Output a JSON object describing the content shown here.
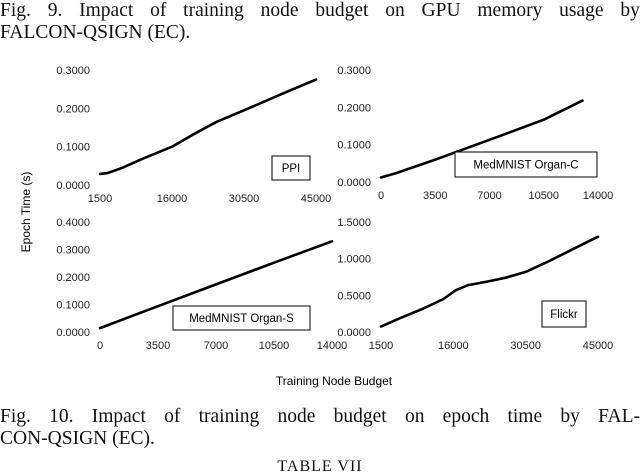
{
  "caption_top": {
    "line1": [
      "Fig.",
      "9.",
      "Impact",
      "of",
      "training",
      "node",
      "budget",
      "on",
      "GPU",
      "memory",
      "usage",
      "by"
    ],
    "line2": "FALCON-QSIGN (EC)."
  },
  "caption_bottom": {
    "line1": [
      "Fig.",
      "10.",
      "Impact",
      "of",
      "training",
      "node",
      "budget",
      "on",
      "epoch",
      "time",
      "by",
      "FAL-"
    ],
    "line2": "CON-QSIGN (EC)."
  },
  "table_caption": "TABLE VII",
  "figure": {
    "ylabel": "Epoch Time (s)",
    "xlabel": "Training Node Budget"
  },
  "chart_data": [
    {
      "type": "line",
      "label_box": "PPI",
      "x": [
        1500,
        3000,
        6000,
        10000,
        16000,
        20000,
        25000,
        30500,
        35000,
        40000,
        45000
      ],
      "values": [
        0.029,
        0.031,
        0.045,
        0.068,
        0.1,
        0.13,
        0.165,
        0.195,
        0.22,
        0.248,
        0.275
      ],
      "xticks": [
        "1500",
        "16000",
        "30500",
        "45000"
      ],
      "yticks": [
        "0.0000",
        "0.1000",
        "0.2000",
        "0.3000"
      ],
      "xlim": [
        1500,
        45000
      ],
      "ylim": [
        0,
        0.3
      ],
      "line_color": "#000000"
    },
    {
      "type": "line",
      "label_box": "MedMNIST Organ-C",
      "x": [
        0,
        1000,
        3500,
        7000,
        10500,
        13000
      ],
      "values": [
        0.012,
        0.024,
        0.06,
        0.113,
        0.167,
        0.218
      ],
      "xticks": [
        "0",
        "3500",
        "7000",
        "10500",
        "14000"
      ],
      "yticks": [
        "0.0000",
        "0.1000",
        "0.2000",
        "0.3000"
      ],
      "xlim": [
        0,
        14000
      ],
      "ylim": [
        0,
        0.3
      ],
      "line_color": "#000000"
    },
    {
      "type": "line",
      "label_box": "MedMNIST Organ-S",
      "x": [
        0,
        3500,
        7000,
        10500,
        14000
      ],
      "values": [
        0.014,
        0.094,
        0.173,
        0.252,
        0.33
      ],
      "xticks": [
        "0",
        "3500",
        "7000",
        "10500",
        "14000"
      ],
      "yticks": [
        "0.0000",
        "0.1000",
        "0.2000",
        "0.3000",
        "0.4000"
      ],
      "xlim": [
        0,
        14000
      ],
      "ylim": [
        0,
        0.4
      ],
      "line_color": "#000000"
    },
    {
      "type": "line",
      "label_box": "Flickr",
      "x": [
        1500,
        5000,
        10000,
        14000,
        16500,
        19000,
        23000,
        26500,
        30500,
        35000,
        40000,
        45000
      ],
      "values": [
        0.075,
        0.18,
        0.32,
        0.45,
        0.57,
        0.64,
        0.69,
        0.74,
        0.82,
        0.96,
        1.13,
        1.3
      ],
      "xticks": [
        "1500",
        "16000",
        "30500",
        "45000"
      ],
      "yticks": [
        "0.0000",
        "0.5000",
        "1.0000",
        "1.5000"
      ],
      "xlim": [
        1500,
        45000
      ],
      "ylim": [
        0,
        1.5
      ],
      "line_color": "#000000"
    }
  ]
}
